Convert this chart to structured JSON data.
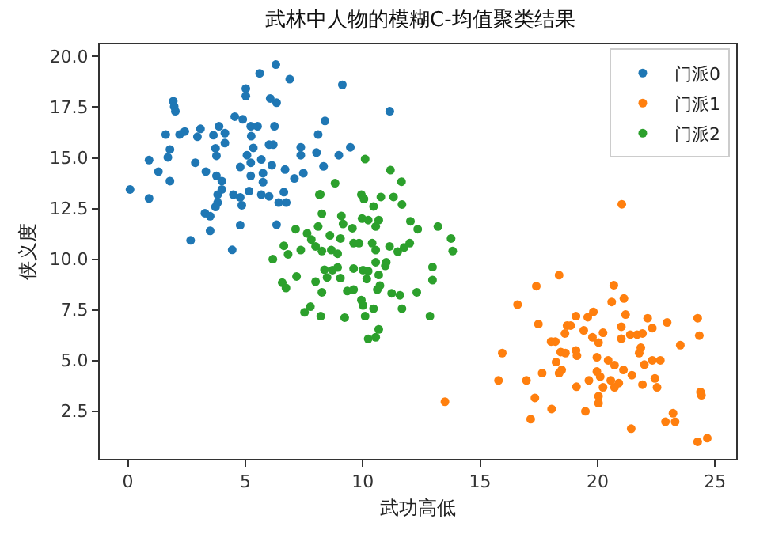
{
  "chart_data": {
    "type": "scatter",
    "title": "武林中人物的模糊C-均值聚类结果",
    "xlabel": "武功高低",
    "ylabel": "侠义度",
    "xlim": [
      -1.2,
      25.9
    ],
    "ylim": [
      0.15,
      20.6
    ],
    "xticks": [
      0,
      5,
      10,
      15,
      20,
      25
    ],
    "yticks": [
      {
        "value": 2.5,
        "label": "2.5"
      },
      {
        "value": 5,
        "label": "5.0"
      },
      {
        "value": 7.5,
        "label": "7.5"
      },
      {
        "value": 10,
        "label": "10.0"
      },
      {
        "value": 12.5,
        "label": "12.5"
      },
      {
        "value": 15,
        "label": "15.0"
      },
      {
        "value": 17.5,
        "label": "17.5"
      },
      {
        "value": 20,
        "label": "20.0"
      }
    ],
    "grid": false,
    "legend": "top right",
    "marker": "circle",
    "series": [
      {
        "name": "门派0",
        "color": "#1f77b4",
        "x": [
          6.3,
          5.61,
          6.89,
          9.13,
          5.02,
          5.02,
          1.93,
          1.97,
          2.02,
          6.06,
          6.33,
          11.15,
          8.39,
          4.55,
          4.89,
          3.88,
          3.09,
          2.42,
          1.61,
          2.2,
          5.23,
          5.52,
          6.24,
          4.13,
          3.64,
          2.96,
          5.25,
          8.1,
          4.13,
          6.01,
          6.19,
          9.47,
          7.36,
          8.03,
          8.98,
          7.36,
          5.34,
          3.73,
          1.79,
          1.7,
          0.9,
          2.87,
          3.77,
          5.07,
          5.68,
          4.78,
          5.23,
          6.13,
          8.33,
          3.32,
          1.3,
          3.77,
          5.75,
          6.69,
          7.47,
          7.09,
          5.23,
          4.0,
          1.79,
          5.75,
          0.09,
          0.9,
          4.0,
          3.82,
          4.49,
          4.78,
          5.16,
          5.68,
          6.01,
          6.64,
          3.82,
          3.73,
          4.85,
          6.42,
          6.74,
          3.28,
          3.5,
          4.78,
          6.33,
          3.5,
          2.67,
          4.44
        ],
        "values": [
          19.6,
          19.17,
          18.88,
          18.6,
          18.41,
          18.05,
          17.79,
          17.53,
          17.3,
          17.93,
          17.72,
          17.3,
          16.82,
          17.03,
          16.9,
          16.56,
          16.43,
          16.3,
          16.15,
          16.15,
          16.56,
          16.56,
          16.56,
          16.22,
          16.12,
          16.04,
          16.07,
          16.15,
          15.73,
          15.65,
          15.65,
          15.52,
          15.52,
          15.26,
          15.13,
          15.13,
          15.49,
          15.47,
          15.41,
          15.02,
          14.89,
          14.76,
          15.1,
          15.13,
          14.92,
          14.55,
          14.76,
          14.63,
          14.58,
          14.32,
          14.32,
          14.11,
          14.24,
          14.42,
          14.24,
          13.98,
          14.11,
          13.85,
          13.85,
          13.8,
          13.44,
          13.0,
          13.44,
          13.18,
          13.18,
          13.05,
          13.36,
          13.18,
          13.1,
          13.31,
          12.79,
          12.58,
          12.66,
          12.79,
          12.79,
          12.27,
          12.12,
          11.68,
          11.7,
          11.4,
          10.93,
          10.46
        ]
      },
      {
        "name": "门派1",
        "color": "#ff7f0e",
        "x": [
          21.03,
          18.36,
          17.39,
          20.69,
          20.6,
          21.12,
          16.59,
          19.08,
          19.58,
          19.82,
          21.19,
          22.13,
          22.96,
          24.26,
          17.48,
          18.7,
          18.85,
          19.41,
          18.61,
          19.78,
          20.23,
          20.04,
          21.01,
          21.01,
          21.39,
          21.68,
          21.91,
          22.33,
          24.33,
          23.52,
          18.02,
          18.2,
          18.43,
          18.63,
          19.08,
          19.12,
          19.97,
          20.45,
          20.72,
          21.84,
          21.77,
          22.33,
          22.67,
          15.94,
          18.23,
          18.47,
          18.36,
          17.64,
          21.1,
          21.46,
          21.99,
          19.97,
          20.11,
          19.63,
          20.56,
          20.9,
          20.72,
          20.23,
          22.44,
          22.53,
          19.1,
          21.91,
          16.97,
          15.78,
          20.04,
          20.04,
          24.38,
          24.42,
          17.33,
          18.04,
          19.48,
          17.15,
          21.43,
          23.21,
          22.89,
          23.3,
          24.26,
          24.67,
          13.5
        ],
        "values": [
          12.71,
          9.21,
          8.67,
          8.72,
          7.89,
          8.06,
          7.76,
          7.19,
          7.14,
          7.4,
          7.27,
          7.09,
          6.88,
          7.09,
          6.8,
          6.73,
          6.73,
          6.49,
          6.34,
          6.15,
          6.37,
          5.89,
          6.67,
          6.08,
          6.28,
          6.28,
          6.34,
          6.6,
          6.23,
          5.76,
          5.94,
          5.94,
          5.42,
          5.37,
          5.5,
          5.24,
          5.16,
          5.01,
          4.77,
          5.63,
          5.37,
          5.01,
          5.01,
          5.37,
          4.93,
          4.54,
          4.38,
          4.38,
          4.54,
          4.28,
          4.8,
          4.46,
          4.2,
          4.02,
          4.02,
          3.89,
          3.68,
          3.68,
          4.12,
          3.68,
          3.71,
          3.81,
          4.02,
          4.02,
          3.24,
          2.9,
          3.45,
          3.29,
          3.16,
          2.61,
          2.5,
          2.11,
          1.64,
          2.4,
          1.98,
          1.98,
          0.99,
          1.17,
          2.97
        ]
      },
      {
        "name": "门派2",
        "color": "#2ca02c",
        "x": [
          10.1,
          11.18,
          11.65,
          8.82,
          8.15,
          9.94,
          10.05,
          10.77,
          11.31,
          10.46,
          11.67,
          8.19,
          8.26,
          9.09,
          9.97,
          10.23,
          10.68,
          12.03,
          9.16,
          7.14,
          8.1,
          9.56,
          10.55,
          13.2,
          12.34,
          7.63,
          8.6,
          7.81,
          9.05,
          9.61,
          9.84,
          10.4,
          11.14,
          12.0,
          11.76,
          13.76,
          13.83,
          6.64,
          7.36,
          7.99,
          8.26,
          8.66,
          8.93,
          6.82,
          10.55,
          11.49,
          6.17,
          11.0,
          10.55,
          10.96,
          8.37,
          8.71,
          8.93,
          9.61,
          10.01,
          10.23,
          12.97,
          8.48,
          9.05,
          10.68,
          7.18,
          6.57,
          7.99,
          10.17,
          12.97,
          10.73,
          10.62,
          6.73,
          8.26,
          9.34,
          9.61,
          11.23,
          11.58,
          12.3,
          9.94,
          10.01,
          10.46,
          11.67,
          7.77,
          7.52,
          8.21,
          9.23,
          10.1,
          12.86,
          10.68,
          10.23,
          10.55
        ],
        "values": [
          14.94,
          14.39,
          13.82,
          13.75,
          13.18,
          13.18,
          12.97,
          13.07,
          13.07,
          12.6,
          12.7,
          13.2,
          12.24,
          12.13,
          12.0,
          11.93,
          11.93,
          11.87,
          11.74,
          11.48,
          11.61,
          11.53,
          11.61,
          11.61,
          11.48,
          11.27,
          11.17,
          10.97,
          11.02,
          10.79,
          10.79,
          10.79,
          10.63,
          10.79,
          10.58,
          11.02,
          10.4,
          10.66,
          10.45,
          10.63,
          10.4,
          10.45,
          10.27,
          10.24,
          10.45,
          10.37,
          10.0,
          9.85,
          9.85,
          9.67,
          9.48,
          9.46,
          9.59,
          9.54,
          9.46,
          9.41,
          9.61,
          9.1,
          9.07,
          9.22,
          9.15,
          8.84,
          8.89,
          9.02,
          8.97,
          8.7,
          8.5,
          8.58,
          8.37,
          8.43,
          8.5,
          8.32,
          8.22,
          8.37,
          7.98,
          7.72,
          7.56,
          7.56,
          7.66,
          7.38,
          7.19,
          7.12,
          7.19,
          7.19,
          6.54,
          6.07,
          6.15
        ]
      }
    ]
  }
}
